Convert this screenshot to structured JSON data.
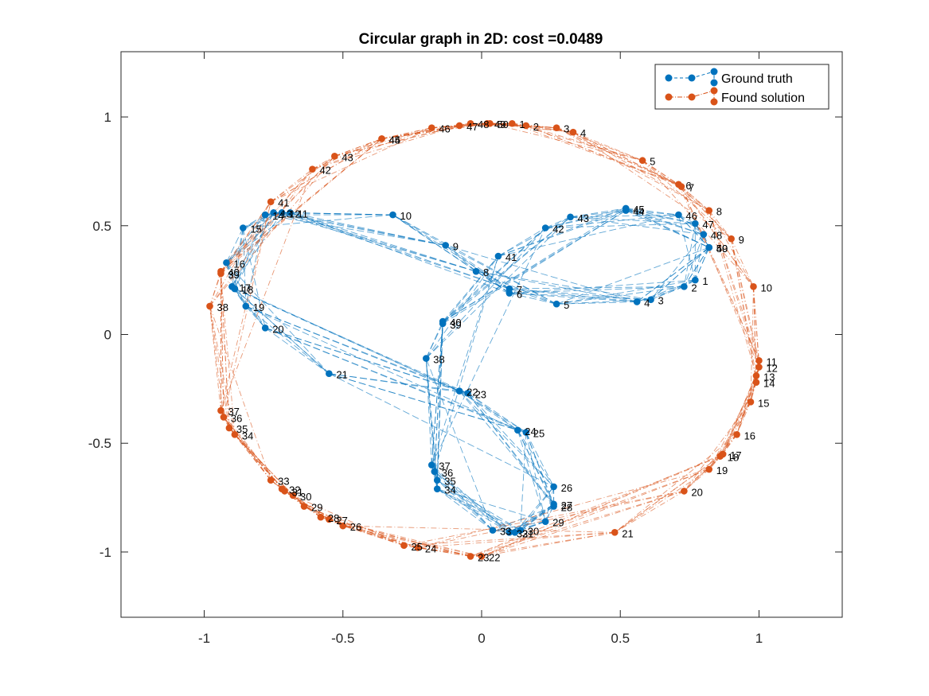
{
  "chart_data": {
    "type": "scatter",
    "title": "Circular graph in 2D: cost =0.0489",
    "xlabel": "",
    "ylabel": "",
    "xlim": [
      -1.3,
      1.3
    ],
    "ylim": [
      -1.3,
      1.3
    ],
    "xticks": [
      -1,
      -0.5,
      0,
      0.5,
      1
    ],
    "xtick_labels": [
      "-1",
      "-0.5",
      "0",
      "0.5",
      "1"
    ],
    "yticks": [
      -1,
      -0.5,
      0,
      0.5,
      1
    ],
    "ytick_labels": [
      "-1",
      "-0.5",
      "0",
      "0.5",
      "1"
    ],
    "grid": false,
    "legend_position": "top-right",
    "series": [
      {
        "name": "Ground truth",
        "color": "#0072BD",
        "points": [
          {
            "label": "1",
            "x": 0.77,
            "y": 0.25
          },
          {
            "label": "2",
            "x": 0.73,
            "y": 0.22
          },
          {
            "label": "3",
            "x": 0.61,
            "y": 0.16
          },
          {
            "label": "4",
            "x": 0.56,
            "y": 0.15
          },
          {
            "label": "5",
            "x": 0.27,
            "y": 0.14
          },
          {
            "label": "6",
            "x": 0.1,
            "y": 0.19
          },
          {
            "label": "7",
            "x": 0.1,
            "y": 0.21
          },
          {
            "label": "8",
            "x": -0.02,
            "y": 0.29
          },
          {
            "label": "9",
            "x": -0.13,
            "y": 0.41
          },
          {
            "label": "10",
            "x": -0.32,
            "y": 0.55
          },
          {
            "label": "11",
            "x": -0.69,
            "y": 0.56
          },
          {
            "label": "12",
            "x": -0.72,
            "y": 0.56
          },
          {
            "label": "13",
            "x": -0.75,
            "y": 0.56
          },
          {
            "label": "14",
            "x": -0.78,
            "y": 0.55
          },
          {
            "label": "15",
            "x": -0.86,
            "y": 0.49
          },
          {
            "label": "16",
            "x": -0.92,
            "y": 0.33
          },
          {
            "label": "17",
            "x": -0.9,
            "y": 0.22
          },
          {
            "label": "18",
            "x": -0.89,
            "y": 0.21
          },
          {
            "label": "19",
            "x": -0.85,
            "y": 0.13
          },
          {
            "label": "20",
            "x": -0.78,
            "y": 0.03
          },
          {
            "label": "21",
            "x": -0.55,
            "y": -0.18
          },
          {
            "label": "22",
            "x": -0.08,
            "y": -0.26
          },
          {
            "label": "23",
            "x": -0.05,
            "y": -0.27
          },
          {
            "label": "24",
            "x": 0.13,
            "y": -0.44
          },
          {
            "label": "25",
            "x": 0.16,
            "y": -0.45
          },
          {
            "label": "26",
            "x": 0.26,
            "y": -0.7
          },
          {
            "label": "27",
            "x": 0.26,
            "y": -0.78
          },
          {
            "label": "28",
            "x": 0.26,
            "y": -0.79
          },
          {
            "label": "29",
            "x": 0.23,
            "y": -0.86
          },
          {
            "label": "30",
            "x": 0.14,
            "y": -0.9
          },
          {
            "label": "31",
            "x": 0.12,
            "y": -0.91
          },
          {
            "label": "32",
            "x": 0.1,
            "y": -0.91
          },
          {
            "label": "33",
            "x": 0.04,
            "y": -0.9
          },
          {
            "label": "34",
            "x": -0.16,
            "y": -0.71
          },
          {
            "label": "35",
            "x": -0.16,
            "y": -0.67
          },
          {
            "label": "36",
            "x": -0.17,
            "y": -0.63
          },
          {
            "label": "37",
            "x": -0.18,
            "y": -0.6
          },
          {
            "label": "38",
            "x": -0.2,
            "y": -0.11
          },
          {
            "label": "39",
            "x": -0.14,
            "y": 0.05
          },
          {
            "label": "40",
            "x": -0.14,
            "y": 0.06
          },
          {
            "label": "41",
            "x": 0.06,
            "y": 0.36
          },
          {
            "label": "42",
            "x": 0.23,
            "y": 0.49
          },
          {
            "label": "43",
            "x": 0.32,
            "y": 0.54
          },
          {
            "label": "44",
            "x": 0.52,
            "y": 0.57
          },
          {
            "label": "45",
            "x": 0.52,
            "y": 0.58
          },
          {
            "label": "46",
            "x": 0.71,
            "y": 0.55
          },
          {
            "label": "47",
            "x": 0.77,
            "y": 0.51
          },
          {
            "label": "48",
            "x": 0.8,
            "y": 0.46
          },
          {
            "label": "49",
            "x": 0.82,
            "y": 0.4
          },
          {
            "label": "50",
            "x": 0.82,
            "y": 0.4
          }
        ]
      },
      {
        "name": "Found solution",
        "color": "#D95319",
        "points": [
          {
            "label": "1",
            "x": 0.11,
            "y": 0.97
          },
          {
            "label": "2",
            "x": 0.16,
            "y": 0.96
          },
          {
            "label": "3",
            "x": 0.27,
            "y": 0.95
          },
          {
            "label": "4",
            "x": 0.33,
            "y": 0.93
          },
          {
            "label": "5",
            "x": 0.58,
            "y": 0.8
          },
          {
            "label": "6",
            "x": 0.71,
            "y": 0.69
          },
          {
            "label": "7",
            "x": 0.72,
            "y": 0.68
          },
          {
            "label": "8",
            "x": 0.82,
            "y": 0.57
          },
          {
            "label": "9",
            "x": 0.9,
            "y": 0.44
          },
          {
            "label": "10",
            "x": 0.98,
            "y": 0.22
          },
          {
            "label": "11",
            "x": 1.0,
            "y": -0.12
          },
          {
            "label": "12",
            "x": 1.0,
            "y": -0.15
          },
          {
            "label": "13",
            "x": 0.99,
            "y": -0.19
          },
          {
            "label": "14",
            "x": 0.99,
            "y": -0.22
          },
          {
            "label": "15",
            "x": 0.97,
            "y": -0.31
          },
          {
            "label": "16",
            "x": 0.92,
            "y": -0.46
          },
          {
            "label": "17",
            "x": 0.87,
            "y": -0.55
          },
          {
            "label": "18",
            "x": 0.86,
            "y": -0.56
          },
          {
            "label": "19",
            "x": 0.82,
            "y": -0.62
          },
          {
            "label": "20",
            "x": 0.73,
            "y": -0.72
          },
          {
            "label": "21",
            "x": 0.48,
            "y": -0.91
          },
          {
            "label": "22",
            "x": 0.0,
            "y": -1.02
          },
          {
            "label": "23",
            "x": -0.04,
            "y": -1.02
          },
          {
            "label": "24",
            "x": -0.23,
            "y": -0.98
          },
          {
            "label": "25",
            "x": -0.28,
            "y": -0.97
          },
          {
            "label": "26",
            "x": -0.5,
            "y": -0.88
          },
          {
            "label": "27",
            "x": -0.55,
            "y": -0.85
          },
          {
            "label": "28",
            "x": -0.58,
            "y": -0.84
          },
          {
            "label": "29",
            "x": -0.64,
            "y": -0.79
          },
          {
            "label": "30",
            "x": -0.68,
            "y": -0.74
          },
          {
            "label": "31",
            "x": -0.71,
            "y": -0.72
          },
          {
            "label": "32",
            "x": -0.72,
            "y": -0.71
          },
          {
            "label": "33",
            "x": -0.76,
            "y": -0.67
          },
          {
            "label": "34",
            "x": -0.89,
            "y": -0.46
          },
          {
            "label": "35",
            "x": -0.91,
            "y": -0.43
          },
          {
            "label": "36",
            "x": -0.93,
            "y": -0.38
          },
          {
            "label": "37",
            "x": -0.94,
            "y": -0.35
          },
          {
            "label": "38",
            "x": -0.98,
            "y": 0.13
          },
          {
            "label": "39",
            "x": -0.94,
            "y": 0.28
          },
          {
            "label": "40",
            "x": -0.94,
            "y": 0.29
          },
          {
            "label": "41",
            "x": -0.76,
            "y": 0.61
          },
          {
            "label": "42",
            "x": -0.61,
            "y": 0.76
          },
          {
            "label": "43",
            "x": -0.53,
            "y": 0.82
          },
          {
            "label": "44",
            "x": -0.36,
            "y": 0.9
          },
          {
            "label": "45",
            "x": -0.36,
            "y": 0.9
          },
          {
            "label": "46",
            "x": -0.18,
            "y": 0.95
          },
          {
            "label": "47",
            "x": -0.08,
            "y": 0.96
          },
          {
            "label": "48",
            "x": -0.04,
            "y": 0.97
          },
          {
            "label": "49",
            "x": 0.02,
            "y": 0.97
          },
          {
            "label": "50",
            "x": 0.03,
            "y": 0.97
          }
        ]
      }
    ]
  }
}
